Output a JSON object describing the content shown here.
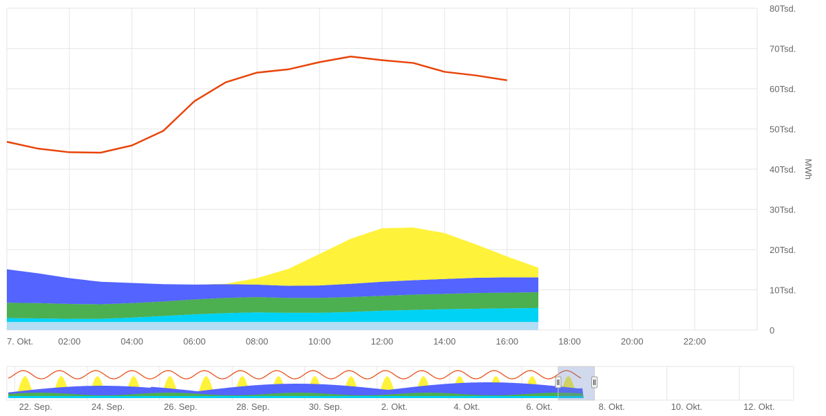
{
  "chart_data": {
    "type": "area",
    "stacked": true,
    "xlabel": "",
    "ylabel": "MWh",
    "y_axis_position": "right",
    "ylim": [
      0,
      80000
    ],
    "xlim": [
      0,
      24
    ],
    "grid": true,
    "y_ticks": [
      {
        "value": 0,
        "label": "0"
      },
      {
        "value": 10000,
        "label": "10Tsd."
      },
      {
        "value": 20000,
        "label": "20Tsd."
      },
      {
        "value": 30000,
        "label": "30Tsd."
      },
      {
        "value": 40000,
        "label": "40Tsd."
      },
      {
        "value": 50000,
        "label": "50Tsd."
      },
      {
        "value": 60000,
        "label": "60Tsd."
      },
      {
        "value": 70000,
        "label": "70Tsd."
      },
      {
        "value": 80000,
        "label": "80Tsd."
      }
    ],
    "x_ticks": [
      {
        "value": 0,
        "label": "7. Okt."
      },
      {
        "value": 2,
        "label": "02:00"
      },
      {
        "value": 4,
        "label": "04:00"
      },
      {
        "value": 6,
        "label": "06:00"
      },
      {
        "value": 8,
        "label": "08:00"
      },
      {
        "value": 10,
        "label": "10:00"
      },
      {
        "value": 12,
        "label": "12:00"
      },
      {
        "value": 14,
        "label": "14:00"
      },
      {
        "value": 16,
        "label": "16:00"
      },
      {
        "value": 18,
        "label": "18:00"
      },
      {
        "value": 20,
        "label": "20:00"
      },
      {
        "value": 22,
        "label": "22:00"
      }
    ],
    "x": [
      0,
      1,
      2,
      3,
      4,
      5,
      6,
      7,
      8,
      9,
      10,
      11,
      12,
      13,
      14,
      15,
      16,
      17
    ],
    "stacked_series": [
      {
        "color": "#b3dcf5",
        "values": [
          2000,
          2000,
          2000,
          2000,
          2000,
          2000,
          2000,
          2000,
          2000,
          2000,
          2000,
          2000,
          2000,
          2000,
          2000,
          2000,
          2000,
          2000
        ]
      },
      {
        "color": "#00d2f5",
        "values": [
          1000,
          900,
          800,
          800,
          1100,
          1500,
          1900,
          2200,
          2400,
          2300,
          2300,
          2500,
          2800,
          3000,
          3200,
          3300,
          3400,
          3500
        ]
      },
      {
        "color": "#4caf50",
        "values": [
          3800,
          3800,
          3700,
          3600,
          3600,
          3600,
          3700,
          3800,
          3800,
          3700,
          3700,
          3700,
          3700,
          3800,
          3800,
          3900,
          3900,
          3900
        ]
      },
      {
        "color": "#5364ff",
        "values": [
          8300,
          7400,
          6400,
          5600,
          5000,
          4300,
          3700,
          3400,
          3100,
          3000,
          3100,
          3300,
          3500,
          3600,
          3700,
          3800,
          3800,
          3700
        ]
      },
      {
        "color": "#fff23a",
        "values": [
          0,
          0,
          0,
          0,
          0,
          0,
          0,
          100,
          1600,
          4200,
          7800,
          11200,
          13300,
          13100,
          11400,
          8300,
          5200,
          2400
        ]
      }
    ],
    "line_series": [
      {
        "color": "#e8440a",
        "x": [
          0,
          1,
          2,
          3,
          4,
          5,
          6,
          7,
          8,
          9,
          10,
          11,
          12,
          13,
          14,
          15,
          16
        ],
        "values": [
          46800,
          45100,
          44200,
          44100,
          45900,
          49500,
          56900,
          61600,
          64000,
          64800,
          66600,
          68000,
          67100,
          66400,
          64200,
          63300,
          62100
        ]
      }
    ]
  },
  "navigator": {
    "x_ticks": [
      {
        "value": 0,
        "label": "22. Sep."
      },
      {
        "value": 2,
        "label": "24. Sep."
      },
      {
        "value": 4,
        "label": "26. Sep."
      },
      {
        "value": 6,
        "label": "28. Sep."
      },
      {
        "value": 8,
        "label": "30. Sep."
      },
      {
        "value": 10,
        "label": "2. Okt."
      },
      {
        "value": 12,
        "label": "4. Okt."
      },
      {
        "value": 14,
        "label": "6. Okt."
      },
      {
        "value": 16,
        "label": "8. Okt."
      },
      {
        "value": 18,
        "label": "10. Okt."
      },
      {
        "value": 20,
        "label": "12. Okt."
      }
    ],
    "range": [
      -0.22,
      21.5
    ],
    "data_end_day": 15.7,
    "selection": [
      15.0,
      16.0
    ]
  }
}
